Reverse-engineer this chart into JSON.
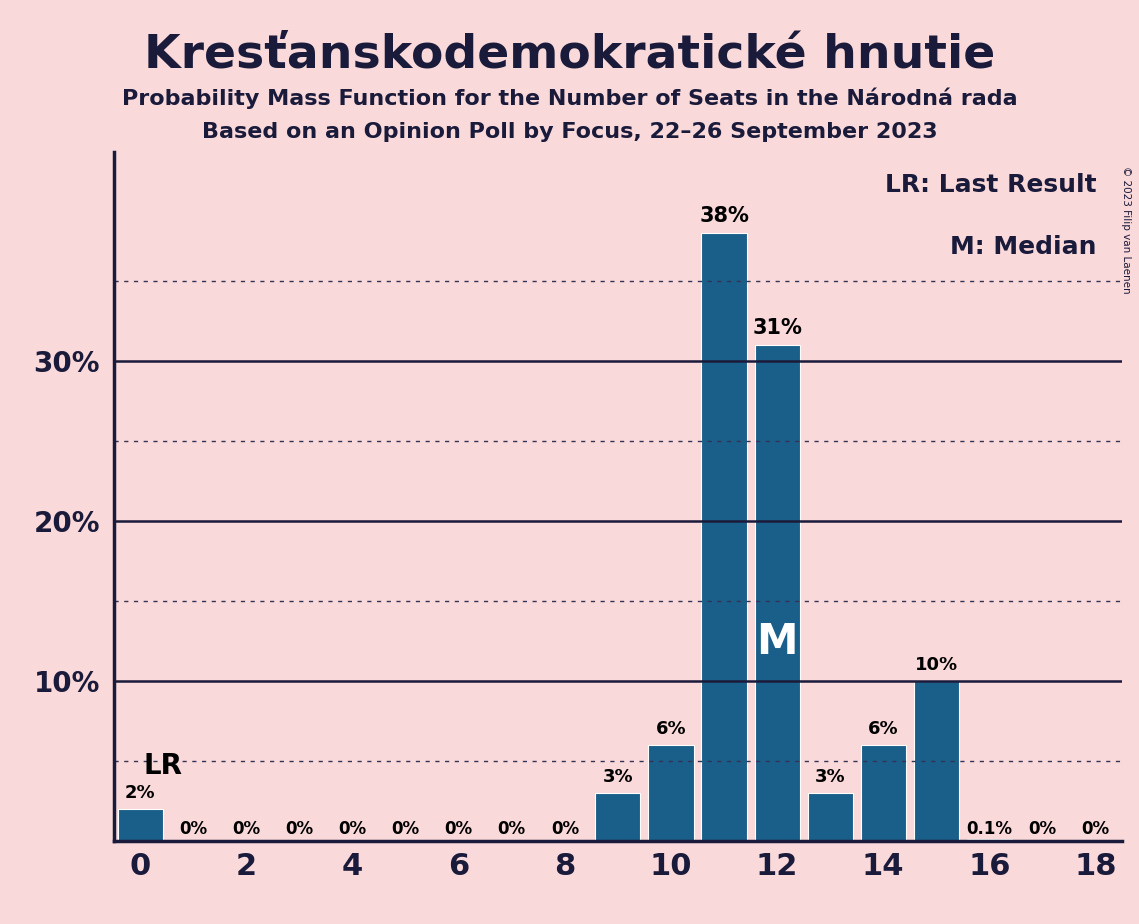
{
  "title": "Kresťanskodemokratické hnutie",
  "subtitle1": "Probability Mass Function for the Number of Seats in the Národná rada",
  "subtitle2": "Based on an Opinion Poll by Focus, 22–26 September 2023",
  "copyright": "© 2023 Filip van Laenen",
  "seats": [
    0,
    1,
    2,
    3,
    4,
    5,
    6,
    7,
    8,
    9,
    10,
    11,
    12,
    13,
    14,
    15,
    16,
    17,
    18
  ],
  "probabilities": [
    0.02,
    0.0,
    0.0,
    0.0,
    0.0,
    0.0,
    0.0,
    0.0,
    0.0,
    0.03,
    0.06,
    0.38,
    0.31,
    0.03,
    0.06,
    0.1,
    0.001,
    0.0,
    0.0
  ],
  "bar_labels": [
    "2%",
    "0%",
    "0%",
    "0%",
    "0%",
    "0%",
    "0%",
    "0%",
    "0%",
    "3%",
    "6%",
    "38%",
    "31%",
    "3%",
    "6%",
    "10%",
    "0.1%",
    "0%",
    "0%"
  ],
  "bar_color": "#1a5f8a",
  "background_color": "#f9d9da",
  "lr_seat": 0,
  "median_seat": 12,
  "legend_lr": "LR: Last Result",
  "legend_m": "M: Median",
  "xlim": [
    -0.5,
    18.5
  ],
  "ylim": [
    0,
    0.43
  ],
  "solid_lines": [
    0.1,
    0.2,
    0.3
  ],
  "dotted_lines": [
    0.05,
    0.15,
    0.25,
    0.35
  ]
}
